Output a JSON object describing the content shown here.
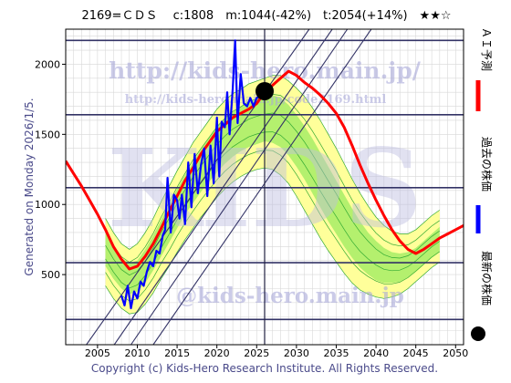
{
  "header": {
    "title": "2169=ＣＤＳ　 c:1808　m:1044(-42%)　t:2054(+14%)　★★☆"
  },
  "side_text": "Generated on Monday 2026/1/5.",
  "copyright": "Copyright (c) Kids-Hero Research Institute. All Rights Reserved.",
  "watermark": {
    "url_main": "http://kids-hero.main.jp/",
    "url_code": "http://kids-hero.main.jp/code2169.html",
    "logo": "KIDS",
    "mail": "@kids-hero.main.jp"
  },
  "legend": [
    {
      "label": "ＡＩ予測",
      "color": "#ff0000",
      "marker": "line"
    },
    {
      "label": "過去の株価",
      "color": "#0000ff",
      "marker": "line"
    },
    {
      "label": "最新の株価",
      "color": "#000000",
      "marker": "dot"
    }
  ],
  "colors": {
    "ai_forecast": "#ff0000",
    "past_price": "#0000ff",
    "latest_dot": "#000000",
    "band_outer": "#ffff9a",
    "band_inner": "#b4f06e",
    "band_lines": "#33aa33",
    "hline": "#333366",
    "trend": "#333366",
    "grid": "#bbbbbb"
  },
  "chart_data": {
    "type": "line",
    "title": "",
    "xlabel": "",
    "ylabel": "",
    "xlim": [
      2001,
      2051
    ],
    "ylim": [
      0,
      2250
    ],
    "x_ticks": [
      2005,
      2010,
      2015,
      2020,
      2025,
      2030,
      2035,
      2040,
      2045,
      2050
    ],
    "y_ticks": [
      500,
      1000,
      1500,
      2000
    ],
    "grid": true,
    "latest": {
      "x": 2026.0,
      "y": 1808,
      "label": "c:1808"
    },
    "vertical_marker_x": 2026.0,
    "horizontal_levels": [
      180,
      585,
      1120,
      1640,
      2170
    ],
    "trend_lines": [
      {
        "x1": 2003.6,
        "y1": 0,
        "x2": 2031.6,
        "y2": 2250
      },
      {
        "x1": 2007.1,
        "y1": 0,
        "x2": 2034.5,
        "y2": 2250
      },
      {
        "x1": 2009.2,
        "y1": 0,
        "x2": 2036.4,
        "y2": 2250
      },
      {
        "x1": 2012.0,
        "y1": 0,
        "x2": 2039.4,
        "y2": 2250
      }
    ],
    "series": [
      {
        "name": "ＡＩ予測",
        "color": "#ff0000",
        "x": [
          2001,
          2002,
          2003,
          2004,
          2005,
          2006,
          2007,
          2008,
          2009,
          2010,
          2011,
          2012,
          2013,
          2014,
          2015,
          2016,
          2017,
          2018,
          2019,
          2020,
          2021,
          2022,
          2023,
          2024,
          2025,
          2026,
          2027,
          2028,
          2029,
          2030,
          2031,
          2032,
          2033,
          2034,
          2035,
          2036,
          2037,
          2038,
          2039,
          2040,
          2041,
          2042,
          2043,
          2044,
          2045,
          2046,
          2047,
          2048,
          2049,
          2050,
          2051
        ],
        "y": [
          1310,
          1220,
          1130,
          1030,
          930,
          820,
          700,
          610,
          540,
          560,
          630,
          720,
          830,
          950,
          1060,
          1170,
          1260,
          1360,
          1440,
          1520,
          1570,
          1620,
          1650,
          1680,
          1720,
          1800,
          1850,
          1900,
          1950,
          1920,
          1870,
          1830,
          1780,
          1720,
          1650,
          1550,
          1420,
          1280,
          1150,
          1030,
          920,
          820,
          740,
          680,
          650,
          680,
          720,
          760,
          790,
          820,
          850
        ]
      },
      {
        "name": "過去の株価",
        "color": "#0000ff",
        "x": [
          2008.0,
          2008.4,
          2008.8,
          2009.2,
          2009.6,
          2010.0,
          2010.4,
          2010.8,
          2011.2,
          2011.6,
          2012.0,
          2012.4,
          2012.8,
          2013.2,
          2013.5,
          2013.8,
          2014.2,
          2014.6,
          2015.0,
          2015.3,
          2015.6,
          2016.0,
          2016.4,
          2016.8,
          2017.2,
          2017.6,
          2018.0,
          2018.4,
          2018.8,
          2019.2,
          2019.6,
          2020.0,
          2020.3,
          2020.6,
          2021.0,
          2021.3,
          2021.6,
          2022.0,
          2022.3,
          2022.6,
          2023.0,
          2023.4,
          2023.8,
          2024.2,
          2024.6,
          2025.0,
          2025.5,
          2026.0
        ],
        "y": [
          350,
          280,
          420,
          260,
          380,
          330,
          450,
          420,
          520,
          590,
          560,
          670,
          650,
          780,
          820,
          1190,
          800,
          1070,
          1030,
          900,
          1070,
          860,
          1300,
          980,
          1360,
          1080,
          1280,
          1400,
          1060,
          1420,
          1150,
          1620,
          1200,
          1590,
          1550,
          1800,
          1500,
          1830,
          2170,
          1580,
          1930,
          1720,
          1700,
          1760,
          1700,
          1760,
          1780,
          1808
        ]
      }
    ],
    "bands": {
      "x": [
        2001,
        2002,
        2003,
        2004,
        2005,
        2006,
        2007,
        2008,
        2009,
        2010,
        2011,
        2012,
        2013,
        2014,
        2015,
        2016,
        2017,
        2018,
        2019,
        2020,
        2021,
        2022,
        2023,
        2024,
        2025,
        2026,
        2027,
        2028,
        2029,
        2030,
        2031,
        2032,
        2033,
        2034,
        2035,
        2036,
        2037,
        2038,
        2039,
        2040,
        2041,
        2042,
        2043,
        2044,
        2045,
        2046,
        2047,
        2048,
        2049,
        2050,
        2051
      ],
      "outer_upper": [
        null,
        null,
        null,
        null,
        null,
        900,
        800,
        720,
        680,
        720,
        800,
        900,
        1020,
        1130,
        1240,
        1340,
        1440,
        1520,
        1600,
        1680,
        1740,
        1790,
        1820,
        1860,
        1880,
        1900,
        1920,
        1920,
        1880,
        1830,
        1770,
        1690,
        1600,
        1500,
        1400,
        1290,
        1180,
        1080,
        990,
        910,
        850,
        810,
        790,
        790,
        820,
        870,
        920,
        960,
        null,
        null,
        null
      ],
      "inner_upper": [
        null,
        null,
        null,
        null,
        null,
        800,
        700,
        620,
        580,
        600,
        680,
        780,
        890,
        1000,
        1110,
        1210,
        1300,
        1390,
        1470,
        1550,
        1610,
        1660,
        1700,
        1730,
        1760,
        1780,
        1780,
        1760,
        1710,
        1640,
        1560,
        1470,
        1370,
        1270,
        1170,
        1070,
        970,
        880,
        800,
        740,
        690,
        660,
        650,
        660,
        690,
        740,
        790,
        840,
        null,
        null,
        null
      ],
      "inner_lower": [
        null,
        null,
        null,
        null,
        null,
        560,
        470,
        400,
        360,
        380,
        440,
        530,
        630,
        730,
        830,
        930,
        1010,
        1090,
        1160,
        1230,
        1290,
        1340,
        1380,
        1410,
        1430,
        1450,
        1440,
        1410,
        1350,
        1270,
        1180,
        1080,
        980,
        880,
        790,
        700,
        620,
        550,
        500,
        460,
        440,
        440,
        450,
        480,
        520,
        570,
        620,
        660,
        null,
        null,
        null
      ],
      "outer_lower": [
        null,
        null,
        null,
        null,
        null,
        420,
        330,
        260,
        220,
        230,
        290,
        370,
        470,
        560,
        660,
        750,
        830,
        910,
        980,
        1050,
        1110,
        1160,
        1200,
        1230,
        1250,
        1260,
        1250,
        1210,
        1150,
        1060,
        960,
        860,
        760,
        670,
        590,
        510,
        440,
        390,
        360,
        340,
        330,
        340,
        360,
        400,
        450,
        500,
        550,
        590,
        null,
        null,
        null
      ]
    }
  }
}
